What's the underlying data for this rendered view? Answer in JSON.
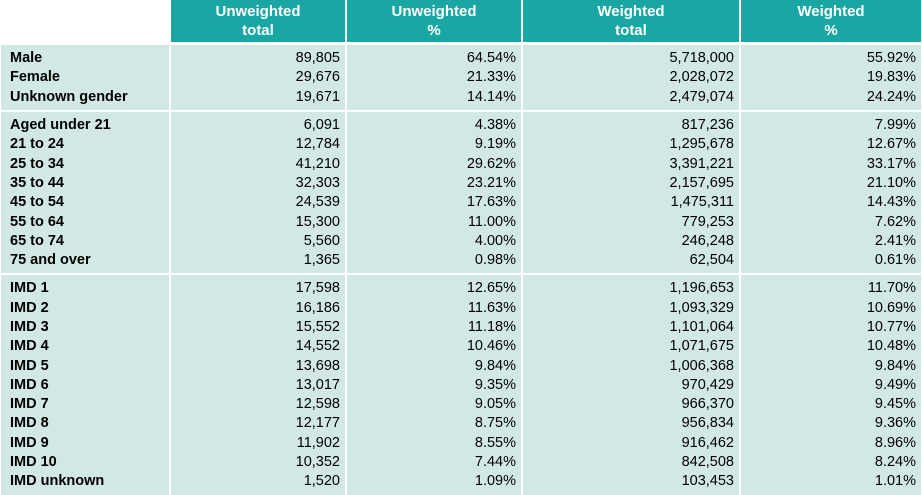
{
  "headers": [
    {
      "line1": "Unweighted",
      "line2": "total"
    },
    {
      "line1": "Unweighted",
      "line2": "%"
    },
    {
      "line1": "Weighted",
      "line2": "total"
    },
    {
      "line1": "Weighted",
      "line2": "%"
    }
  ],
  "groups": [
    {
      "name": "gender",
      "rows": [
        [
          "Male",
          "89,805",
          "64.54%",
          "5,718,000",
          "55.92%"
        ],
        [
          "Female",
          "29,676",
          "21.33%",
          "2,028,072",
          "19.83%"
        ],
        [
          "Unknown gender",
          "19,671",
          "14.14%",
          "2,479,074",
          "24.24%"
        ]
      ]
    },
    {
      "name": "age",
      "rows": [
        [
          "Aged under 21",
          "6,091",
          "4.38%",
          "817,236",
          "7.99%"
        ],
        [
          "21 to 24",
          "12,784",
          "9.19%",
          "1,295,678",
          "12.67%"
        ],
        [
          "25 to 34",
          "41,210",
          "29.62%",
          "3,391,221",
          "33.17%"
        ],
        [
          "35 to 44",
          "32,303",
          "23.21%",
          "2,157,695",
          "21.10%"
        ],
        [
          "45 to 54",
          "24,539",
          "17.63%",
          "1,475,311",
          "14.43%"
        ],
        [
          "55 to 64",
          "15,300",
          "11.00%",
          "779,253",
          "7.62%"
        ],
        [
          "65 to 74",
          "5,560",
          "4.00%",
          "246,248",
          "2.41%"
        ],
        [
          "75 and over",
          "1,365",
          "0.98%",
          "62,504",
          "0.61%"
        ]
      ]
    },
    {
      "name": "imd",
      "rows": [
        [
          "IMD 1",
          "17,598",
          "12.65%",
          "1,196,653",
          "11.70%"
        ],
        [
          "IMD 2",
          "16,186",
          "11.63%",
          "1,093,329",
          "10.69%"
        ],
        [
          "IMD 3",
          "15,552",
          "11.18%",
          "1,101,064",
          "10.77%"
        ],
        [
          "IMD 4",
          "14,552",
          "10.46%",
          "1,071,675",
          "10.48%"
        ],
        [
          "IMD 5",
          "13,698",
          "9.84%",
          "1,006,368",
          "9.84%"
        ],
        [
          "IMD 6",
          "13,017",
          "9.35%",
          "970,429",
          "9.49%"
        ],
        [
          "IMD 7",
          "12,598",
          "9.05%",
          "966,370",
          "9.45%"
        ],
        [
          "IMD 8",
          "12,177",
          "8.75%",
          "956,834",
          "9.36%"
        ],
        [
          "IMD 9",
          "11,902",
          "8.55%",
          "916,462",
          "8.96%"
        ],
        [
          "IMD 10",
          "10,352",
          "7.44%",
          "842,508",
          "8.24%"
        ],
        [
          "IMD unknown",
          "1,520",
          "1.09%",
          "103,453",
          "1.01%"
        ]
      ]
    }
  ],
  "colors": {
    "header_bg": "#1aa7a3",
    "row_bg": "#d1e8e5"
  }
}
